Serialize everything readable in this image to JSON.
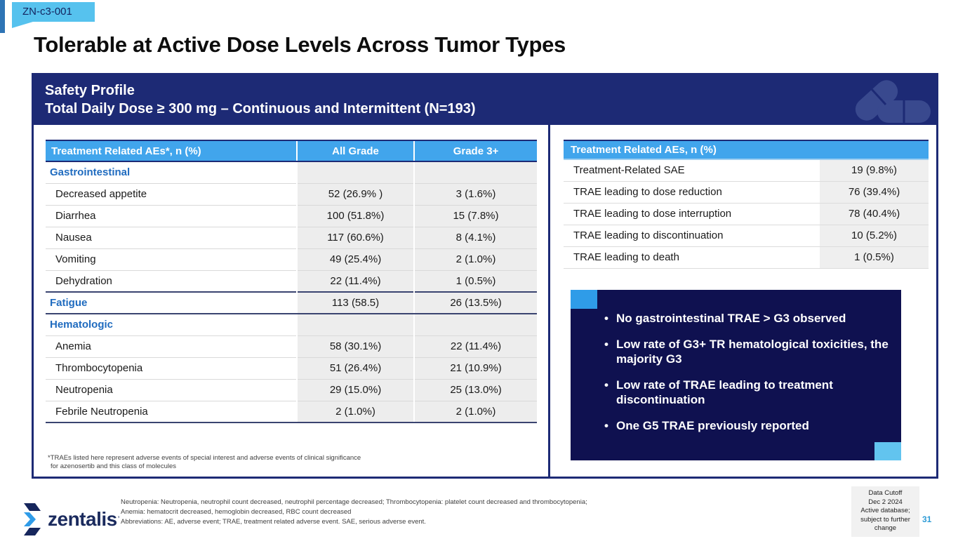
{
  "badge": "ZN-c3-001",
  "title": "Tolerable at Active Dose Levels Across Tumor Types",
  "panel_header": {
    "line1": "Safety Profile",
    "line2": "Total Daily Dose ≥ 300 mg – Continuous and Intermittent (N=193)"
  },
  "left_table": {
    "headers": [
      "Treatment Related AEs*, n (%)",
      "All Grade",
      "Grade 3+"
    ],
    "rows": [
      {
        "label": "Gastrointestinal",
        "all_grade": "",
        "grade3": "",
        "type": "category"
      },
      {
        "label": "Decreased appetite",
        "all_grade": "52 (26.9% )",
        "grade3": "3 (1.6%)",
        "type": "item"
      },
      {
        "label": "Diarrhea",
        "all_grade": "100 (51.8%)",
        "grade3": "15 (7.8%)",
        "type": "item"
      },
      {
        "label": "Nausea",
        "all_grade": "117 (60.6%)",
        "grade3": "8 (4.1%)",
        "type": "item"
      },
      {
        "label": "Vomiting",
        "all_grade": "49 (25.4%)",
        "grade3": "2 (1.0%)",
        "type": "item"
      },
      {
        "label": "Dehydration",
        "all_grade": "22 (11.4%)",
        "grade3": "1 (0.5%)",
        "type": "item"
      },
      {
        "label": "Fatigue",
        "all_grade": "113 (58.5)",
        "grade3": "26 (13.5%)",
        "type": "category",
        "divider": true
      },
      {
        "label": "Hematologic",
        "all_grade": "",
        "grade3": "",
        "type": "category"
      },
      {
        "label": "Anemia",
        "all_grade": "58 (30.1%)",
        "grade3": "22 (11.4%)",
        "type": "item"
      },
      {
        "label": "Thrombocytopenia",
        "all_grade": "51 (26.4%)",
        "grade3": "21 (10.9%)",
        "type": "item"
      },
      {
        "label": "Neutropenia",
        "all_grade": "29 (15.0%)",
        "grade3": "25 (13.0%)",
        "type": "item"
      },
      {
        "label": "Febrile Neutropenia",
        "all_grade": "2 (1.0%)",
        "grade3": "2 (1.0%)",
        "type": "item"
      }
    ],
    "footnote_line1": "*TRAEs listed here represent adverse events of special interest and adverse events of clinical significance",
    "footnote_line2": "for azenosertib and this class of molecules"
  },
  "right_table": {
    "header": "Treatment Related AEs, n (%)",
    "rows": [
      {
        "label": "Treatment-Related SAE",
        "value": "19 (9.8%)"
      },
      {
        "label": "TRAE leading to dose reduction",
        "value": "76 (39.4%)"
      },
      {
        "label": "TRAE leading to dose interruption",
        "value": "78 (40.4%)"
      },
      {
        "label": "TRAE leading to discontinuation",
        "value": "10 (5.2%)"
      },
      {
        "label": "TRAE leading to death",
        "value": "1 (0.5%)"
      }
    ]
  },
  "bullets": [
    "No gastrointestinal TRAE > G3 observed",
    "Low rate of G3+ TR hematological toxicities, the majority G3",
    "Low rate of TRAE leading to treatment discontinuation",
    "One G5 TRAE previously reported"
  ],
  "footer": {
    "logo_text": "zentalis",
    "note1": "Neutropenia: Neutropenia, neutrophil count decreased, neutrophil percentage decreased; Thrombocytopenia: platelet count decreased and thrombocytopenia;",
    "note2": "Anemia: hematocrit decreased, hemoglobin decreased, RBC count decreased",
    "note3": "Abbreviations: AE, adverse event; TRAE, treatment related adverse event. SAE, serious adverse event.",
    "cutoff_lines": [
      "Data Cutoff",
      "Dec 2 2024",
      "Active database;",
      "subject to further",
      "change"
    ],
    "page_number": "31"
  },
  "colors": {
    "navy": "#1d2a75",
    "table_header_blue": "#41a5ec",
    "category_blue": "#1f6bbf",
    "dark_box": "#0f1150",
    "badge_blue": "#56c2ee",
    "accent_sky": "#2f9ce8",
    "page_num_blue": "#2e9bd6"
  }
}
